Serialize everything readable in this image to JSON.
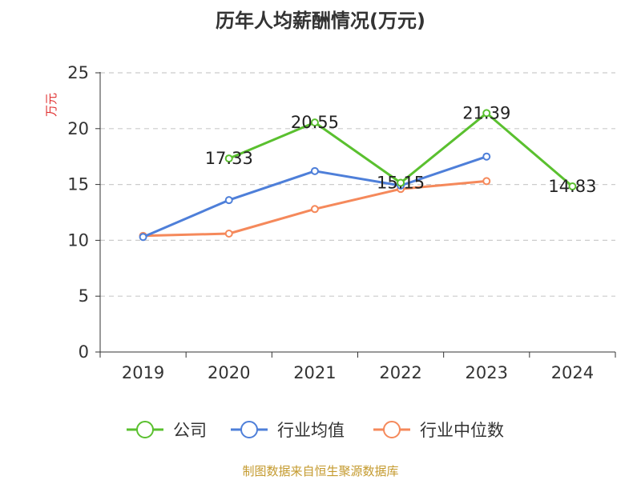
{
  "chart_data": {
    "type": "line",
    "title": "历年人均薪酬情况(万元)",
    "ylabel": "万元",
    "xlabel": "",
    "categories": [
      "2019",
      "2020",
      "2021",
      "2022",
      "2023",
      "2024"
    ],
    "ylim": [
      0,
      25
    ],
    "yticks": [
      0,
      5,
      10,
      15,
      20,
      25
    ],
    "grid": true,
    "legend_position": "bottom",
    "series": [
      {
        "name": "公司",
        "color": "#5ac02f",
        "values": [
          null,
          17.33,
          20.55,
          15.15,
          21.39,
          14.83
        ],
        "labels": [
          null,
          "17.33",
          "20.55",
          "15.15",
          "21.39",
          "14.83"
        ]
      },
      {
        "name": "行业均值",
        "color": "#4e7fd9",
        "values": [
          10.3,
          13.6,
          16.2,
          14.9,
          17.5,
          null
        ]
      },
      {
        "name": "行业中位数",
        "color": "#f5895b",
        "values": [
          10.4,
          10.6,
          12.8,
          14.6,
          15.3,
          null
        ]
      }
    ]
  },
  "footer": {
    "source": "制图数据来自恒生聚源数据库"
  },
  "colors": {
    "ylabel": "#e03030",
    "source": "#c49a2e",
    "axis": "#333333",
    "grid": "#cccccc"
  }
}
